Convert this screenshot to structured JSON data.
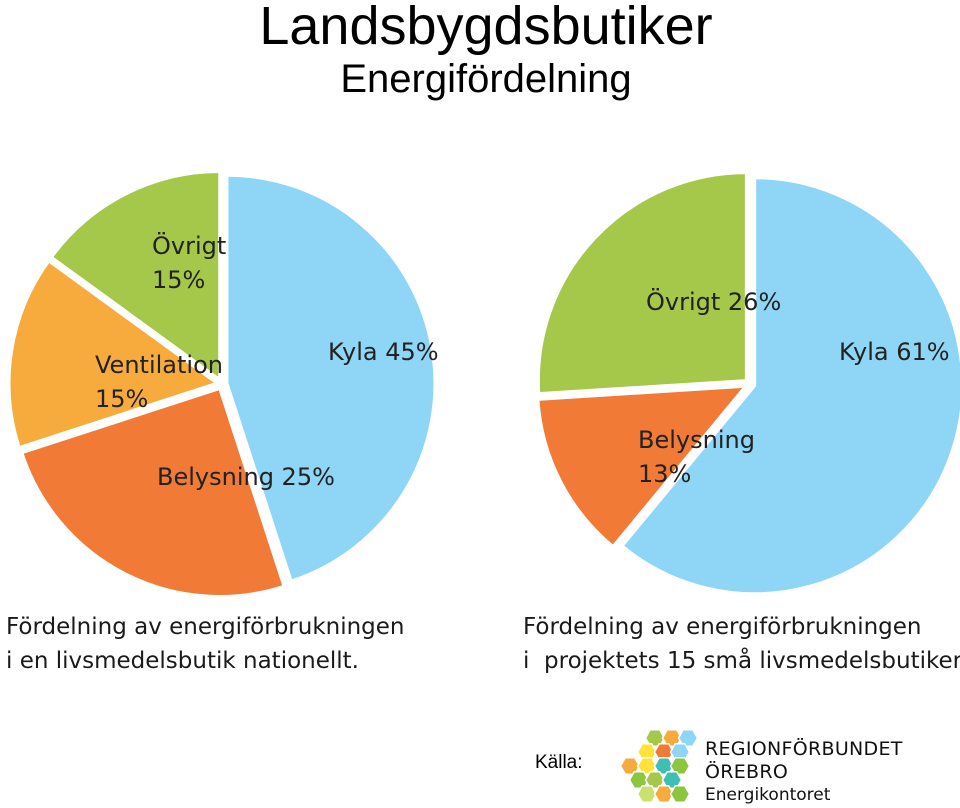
{
  "title": "Landsbygdsbutiker",
  "subtitle": "Energifördelning",
  "chart_data": [
    {
      "type": "pie",
      "caption": [
        "Fördelning av energiförbrukningen",
        "i en livsmedelsbutik nationellt."
      ],
      "slices": [
        {
          "label": [
            "Kyla 45%"
          ],
          "value": 45,
          "color": "#8fd5f5"
        },
        {
          "label": [
            "Belysning 25%"
          ],
          "value": 25,
          "color": "#f07a36"
        },
        {
          "label": [
            "Ventilation",
            "15%"
          ],
          "value": 15,
          "color": "#f8ab3d"
        },
        {
          "label": [
            "Övrigt",
            "15%"
          ],
          "value": 15,
          "color": "#a5c84b"
        }
      ]
    },
    {
      "type": "pie",
      "caption": [
        "Fördelning av energiförbrukningen",
        "i  projektets 15 små livsmedelsbutiker."
      ],
      "slices": [
        {
          "label": [
            "Kyla 61%"
          ],
          "value": 61,
          "color": "#8fd5f5"
        },
        {
          "label": [
            "Belysning",
            "13%"
          ],
          "value": 13,
          "color": "#f07a36"
        },
        {
          "label": [
            "Övrigt 26%"
          ],
          "value": 26,
          "color": "#a5c84b"
        }
      ]
    }
  ],
  "source": {
    "label": "Källa:",
    "logo_lines": [
      "REGIONFÖRBUNDET",
      "ÖREBRO",
      "Energikontoret"
    ],
    "logo_colors": [
      "#a5c84b",
      "#f8ab3d",
      "#8fd5f5",
      "#f07a36",
      "#ffe23a",
      "#3fbfb4",
      "#8cc63f",
      "#c9e26f"
    ]
  }
}
